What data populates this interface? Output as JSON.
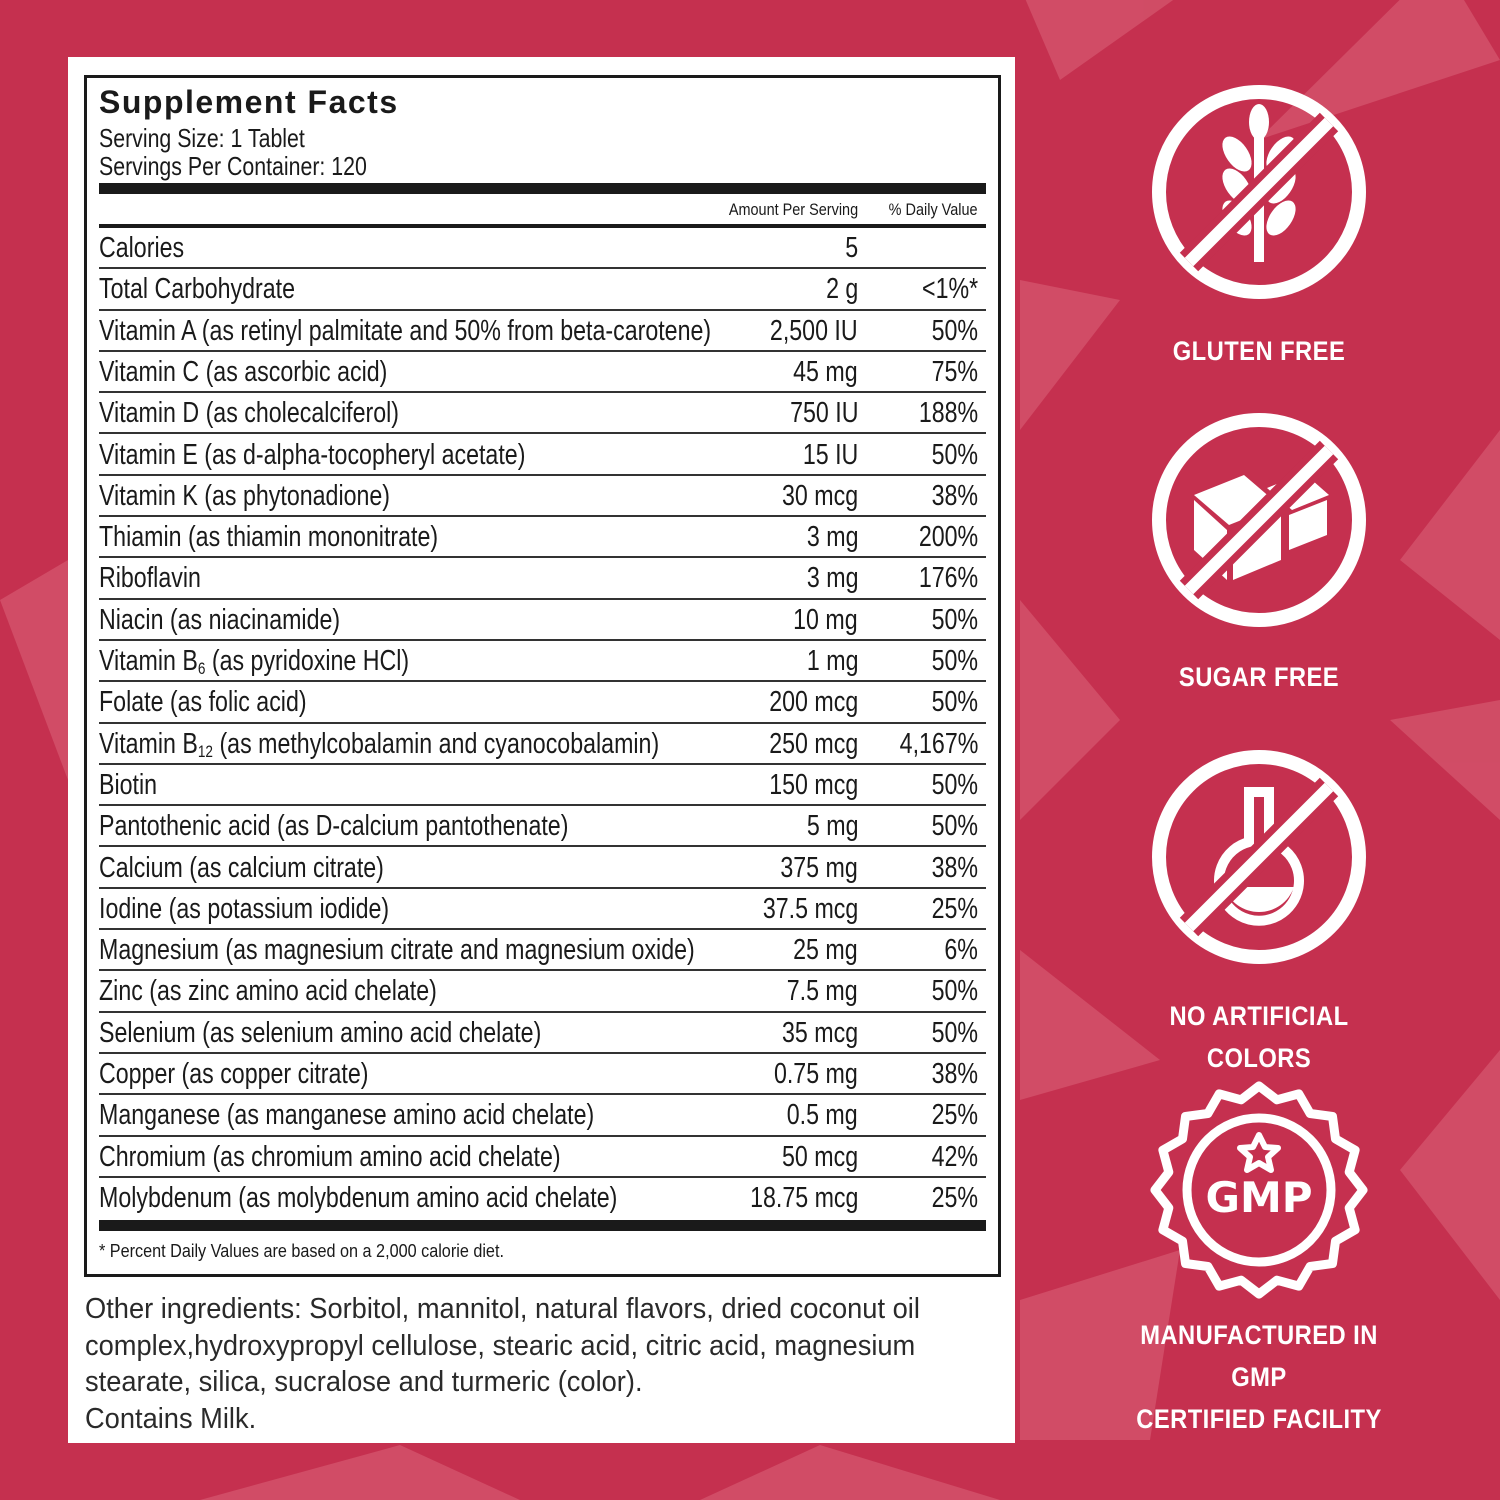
{
  "label": {
    "title": "Supplement Facts",
    "serving_size": "Serving Size: 1 Tablet",
    "servings_per_container": "Servings Per Container: 120",
    "col_amount": "Amount Per Serving",
    "col_dv": "% Daily Value",
    "rows": [
      {
        "name": "Calories",
        "amount": "5",
        "dv": ""
      },
      {
        "name": "Total Carbohydrate",
        "amount": "2 g",
        "dv": "<1%*"
      },
      {
        "name": "Vitamin A (as retinyl palmitate and 50% from beta-carotene)",
        "amount": "2,500 IU",
        "dv": "50%"
      },
      {
        "name": "Vitamin C (as ascorbic acid)",
        "amount": "45 mg",
        "dv": "75%"
      },
      {
        "name": "Vitamin D (as cholecalciferol)",
        "amount": "750 IU",
        "dv": "188%"
      },
      {
        "name": "Vitamin E (as d-alpha-tocopheryl acetate)",
        "amount": "15 IU",
        "dv": "50%"
      },
      {
        "name": "Vitamin K (as phytonadione)",
        "amount": "30 mcg",
        "dv": "38%"
      },
      {
        "name": "Thiamin (as thiamin mononitrate)",
        "amount": "3 mg",
        "dv": "200%"
      },
      {
        "name": "Riboflavin",
        "amount": "3 mg",
        "dv": "176%"
      },
      {
        "name": "Niacin (as niacinamide)",
        "amount": "10 mg",
        "dv": "50%"
      },
      {
        "name": "Vitamin B",
        "sub": "6",
        "rest": " (as pyridoxine HCl)",
        "amount": "1 mg",
        "dv": "50%"
      },
      {
        "name": "Folate (as folic acid)",
        "amount": "200 mcg",
        "dv": "50%"
      },
      {
        "name": "Vitamin B",
        "sub": "12",
        "rest": " (as methylcobalamin and cyanocobalamin)",
        "amount": "250 mcg",
        "dv": "4,167%"
      },
      {
        "name": "Biotin",
        "amount": "150 mcg",
        "dv": "50%"
      },
      {
        "name": "Pantothenic acid (as D-calcium pantothenate)",
        "amount": "5 mg",
        "dv": "50%"
      },
      {
        "name": "Calcium (as calcium citrate)",
        "amount": "375 mg",
        "dv": "38%"
      },
      {
        "name": "Iodine (as potassium iodide)",
        "amount": "37.5 mcg",
        "dv": "25%"
      },
      {
        "name": "Magnesium (as magnesium citrate and magnesium oxide)",
        "amount": "25 mg",
        "dv": "6%"
      },
      {
        "name": "Zinc (as zinc amino acid chelate)",
        "amount": "7.5 mg",
        "dv": "50%"
      },
      {
        "name": "Selenium (as selenium amino acid chelate)",
        "amount": "35 mcg",
        "dv": "50%"
      },
      {
        "name": "Copper (as copper citrate)",
        "amount": "0.75 mg",
        "dv": "38%"
      },
      {
        "name": "Manganese (as manganese amino acid chelate)",
        "amount": "0.5 mg",
        "dv": "25%"
      },
      {
        "name": "Chromium (as chromium amino acid chelate)",
        "amount": "50 mcg",
        "dv": "42%"
      },
      {
        "name": "Molybdenum (as molybdenum amino acid chelate)",
        "amount": "18.75 mcg",
        "dv": "25%"
      }
    ],
    "footnote": "* Percent Daily Values are based on a 2,000 calorie diet."
  },
  "other_ingredients": "Other ingredients: Sorbitol, mannitol, natural flavors, dried coconut oil complex,hydroxypropyl cellulose, stearic acid, citric acid, magnesium stearate, silica, sucralose and turmeric (color).",
  "allergen": "Contains Milk.",
  "badges": [
    {
      "icon": "no-wheat-icon",
      "label": "GLUTEN FREE"
    },
    {
      "icon": "no-sugar-cubes-icon",
      "label": "SUGAR FREE"
    },
    {
      "icon": "no-flask-icon",
      "label": "NO ARTIFICIAL COLORS"
    },
    {
      "icon": "gmp-seal-icon",
      "label_line1": "MANUFACTURED IN GMP",
      "label_line2": "CERTIFIED FACILITY",
      "seal_text": "GMP"
    }
  ],
  "colors": {
    "background": "#c5304f",
    "background_accent": "#d4566d",
    "text": "#1a1a1a",
    "badge": "#ffffff"
  }
}
